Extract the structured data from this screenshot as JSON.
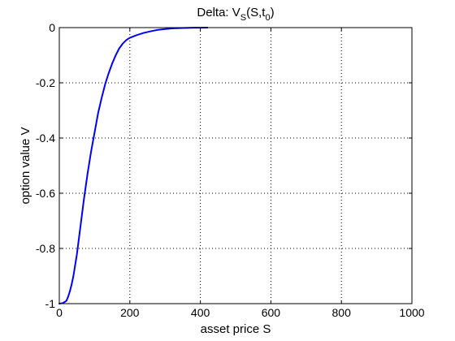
{
  "chart_data": {
    "type": "line",
    "title": {
      "main": "Delta: V",
      "sub1": "S",
      "mid": "(S,t",
      "sub2": "0",
      "end": ")"
    },
    "xlabel": "asset price S",
    "ylabel": "option value V",
    "xlim": [
      0,
      1000
    ],
    "ylim": [
      -1,
      0
    ],
    "xticks": [
      "0",
      "200",
      "400",
      "600",
      "800",
      "1000"
    ],
    "yticks": [
      "0",
      "-0.2",
      "-0.4",
      "-0.6",
      "-0.8",
      "-1"
    ],
    "grid": true,
    "line_color": "#0000ff",
    "series": [
      {
        "x": [
          0,
          10,
          20,
          25,
          30,
          35,
          40,
          50,
          60,
          70,
          80,
          90,
          100,
          110,
          120,
          130,
          140,
          150,
          160,
          170,
          180,
          190,
          200,
          220,
          240,
          260,
          280,
          300,
          320,
          340,
          360,
          380,
          400,
          420
        ],
        "values": [
          -1.0,
          -0.998,
          -0.99,
          -0.975,
          -0.955,
          -0.93,
          -0.9,
          -0.82,
          -0.72,
          -0.62,
          -0.53,
          -0.45,
          -0.38,
          -0.31,
          -0.255,
          -0.205,
          -0.165,
          -0.13,
          -0.1,
          -0.075,
          -0.058,
          -0.045,
          -0.037,
          -0.027,
          -0.019,
          -0.013,
          -0.008,
          -0.005,
          -0.003,
          -0.0018,
          -0.001,
          -0.0005,
          -0.0002,
          -0.0001
        ]
      }
    ]
  }
}
